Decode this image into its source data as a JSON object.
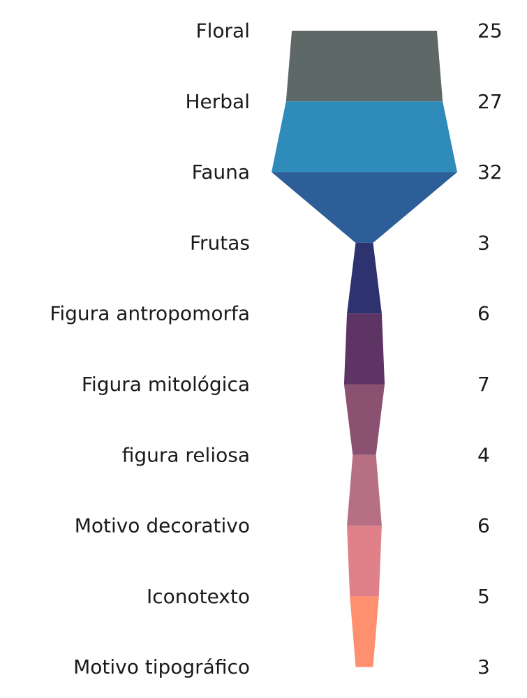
{
  "chart_data": {
    "type": "funnel",
    "categories": [
      "Floral",
      "Herbal",
      "Fauna",
      "Frutas",
      "Figura antropomorfa",
      "Figura mitológica",
      "figura reliosa",
      "Motivo decorativo",
      "Iconotexto",
      "Motivo tipográfico"
    ],
    "values": [
      25,
      27,
      32,
      3,
      6,
      7,
      4,
      6,
      5,
      3
    ],
    "colors": [
      "#5e6867",
      "#2e8bba",
      "#2d5e97",
      "#2e3370",
      "#5e3465",
      "#8a5270",
      "#b76f84",
      "#e0818a",
      "#fe9070"
    ],
    "title": "",
    "xlabel": "",
    "ylabel": ""
  }
}
